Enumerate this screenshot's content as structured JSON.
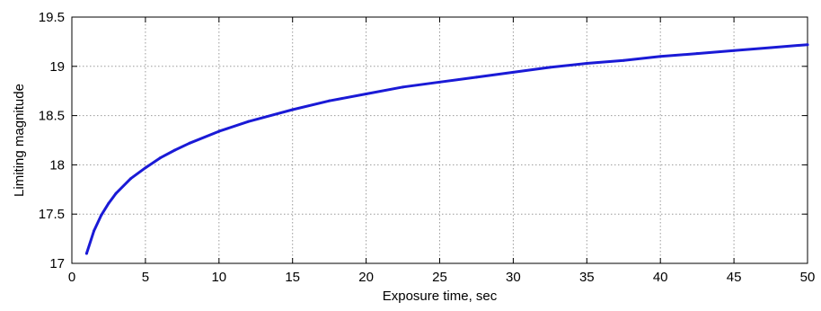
{
  "chart_data": {
    "type": "line",
    "xlabel": "Exposure time,  sec",
    "ylabel": "Limiting magnitude",
    "xlim": [
      0,
      50
    ],
    "ylim": [
      17,
      19.5
    ],
    "x_ticks": [
      "0",
      "5",
      "10",
      "15",
      "20",
      "25",
      "30",
      "35",
      "40",
      "45",
      "50"
    ],
    "y_ticks": [
      "17",
      "17.5",
      "18",
      "18.5",
      "19",
      "19.5"
    ],
    "grid": true,
    "line_color": "#1a1ad6",
    "series": [
      {
        "x": [
          1,
          1.5,
          2,
          2.5,
          3,
          4,
          5,
          6,
          7,
          8,
          10,
          12,
          15,
          17.5,
          20,
          22.5,
          25,
          27.5,
          30,
          32.5,
          35,
          37.5,
          40,
          42.5,
          45,
          47.5,
          50
        ],
        "values": [
          17.1,
          17.33,
          17.49,
          17.61,
          17.71,
          17.86,
          17.97,
          18.07,
          18.15,
          18.22,
          18.34,
          18.44,
          18.56,
          18.65,
          18.72,
          18.79,
          18.84,
          18.89,
          18.94,
          18.99,
          19.03,
          19.06,
          19.1,
          19.13,
          19.16,
          19.19,
          19.22
        ]
      }
    ]
  }
}
